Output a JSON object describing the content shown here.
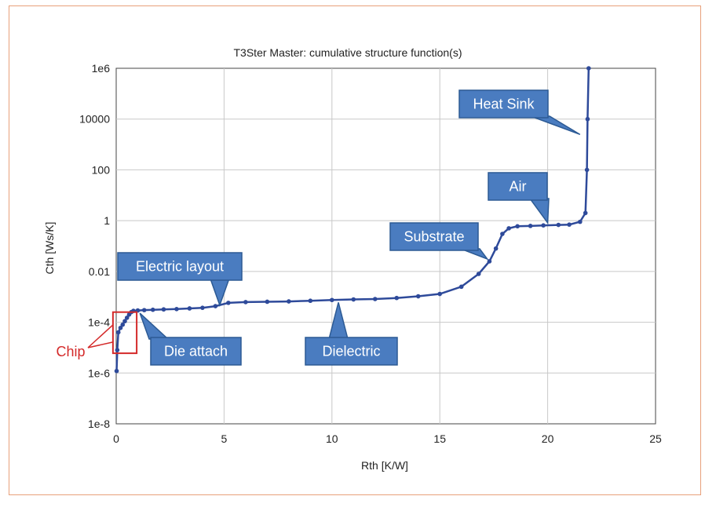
{
  "chart_data": {
    "type": "scatter",
    "title": "T3Ster Master: cumulative structure function(s)",
    "xlabel": "Rth  [K/W]",
    "ylabel": "Cth  [Ws/K]",
    "xlim": [
      0,
      25
    ],
    "ylim": [
      1e-08,
      1000000.0
    ],
    "yscale": "log",
    "grid": true,
    "x_ticks": [
      "0",
      "5",
      "10",
      "15",
      "20",
      "25"
    ],
    "y_ticks": [
      "1e-8",
      "1e-6",
      "1e-4",
      "0.01",
      "1",
      "100",
      "10000",
      "1e6"
    ],
    "series": [
      {
        "color": "#2e4a9a",
        "points": [
          [
            0.02,
            1.2e-06
          ],
          [
            0.05,
            8e-06
          ],
          [
            0.1,
            4e-05
          ],
          [
            0.2,
            6e-05
          ],
          [
            0.3,
            8e-05
          ],
          [
            0.4,
            0.00011
          ],
          [
            0.5,
            0.00015
          ],
          [
            0.6,
            0.0002
          ],
          [
            0.7,
            0.00025
          ],
          [
            0.8,
            0.00028
          ],
          [
            1.0,
            0.00029
          ],
          [
            1.3,
            0.0003
          ],
          [
            1.7,
            0.00031
          ],
          [
            2.2,
            0.00032
          ],
          [
            2.8,
            0.00033
          ],
          [
            3.4,
            0.00035
          ],
          [
            4.0,
            0.00037
          ],
          [
            4.6,
            0.00043
          ],
          [
            5.2,
            0.00058
          ],
          [
            6.0,
            0.00062
          ],
          [
            7.0,
            0.00064
          ],
          [
            8.0,
            0.00066
          ],
          [
            9.0,
            0.0007
          ],
          [
            10.0,
            0.00075
          ],
          [
            11.0,
            0.00079
          ],
          [
            12.0,
            0.00082
          ],
          [
            13.0,
            0.0009
          ],
          [
            14.0,
            0.00105
          ],
          [
            15.0,
            0.0013
          ],
          [
            16.0,
            0.0025
          ],
          [
            16.8,
            0.008
          ],
          [
            17.3,
            0.025
          ],
          [
            17.6,
            0.08
          ],
          [
            17.9,
            0.3
          ],
          [
            18.2,
            0.5
          ],
          [
            18.6,
            0.6
          ],
          [
            19.2,
            0.62
          ],
          [
            19.8,
            0.65
          ],
          [
            20.5,
            0.68
          ],
          [
            21.0,
            0.7
          ],
          [
            21.5,
            0.9
          ],
          [
            21.75,
            2.0
          ],
          [
            21.82,
            100
          ],
          [
            21.85,
            10000.0
          ],
          [
            21.9,
            1000000.0
          ]
        ]
      }
    ],
    "annotations": [
      {
        "label": "Electric layout",
        "x": 4.8,
        "y": 0.00038
      },
      {
        "label": "Die attach",
        "x": 1.1,
        "y": 0.00028
      },
      {
        "label": "Dielectric",
        "x": 10.3,
        "y": 0.00075
      },
      {
        "label": "Substrate",
        "x": 17.2,
        "y": 0.025
      },
      {
        "label": "Air",
        "x": 20.0,
        "y": 0.66
      },
      {
        "label": "Heat Sink",
        "x": 21.5,
        "y": 2000
      },
      {
        "label": "Chip",
        "x": 0.4,
        "y": 8e-05
      }
    ]
  },
  "colors": {
    "frame": "#e8a07a",
    "callout_fill": "#4a7cc0",
    "callout_stroke": "#2c5a94",
    "chip": "#d42a2a",
    "series": "#2e4a9a"
  }
}
